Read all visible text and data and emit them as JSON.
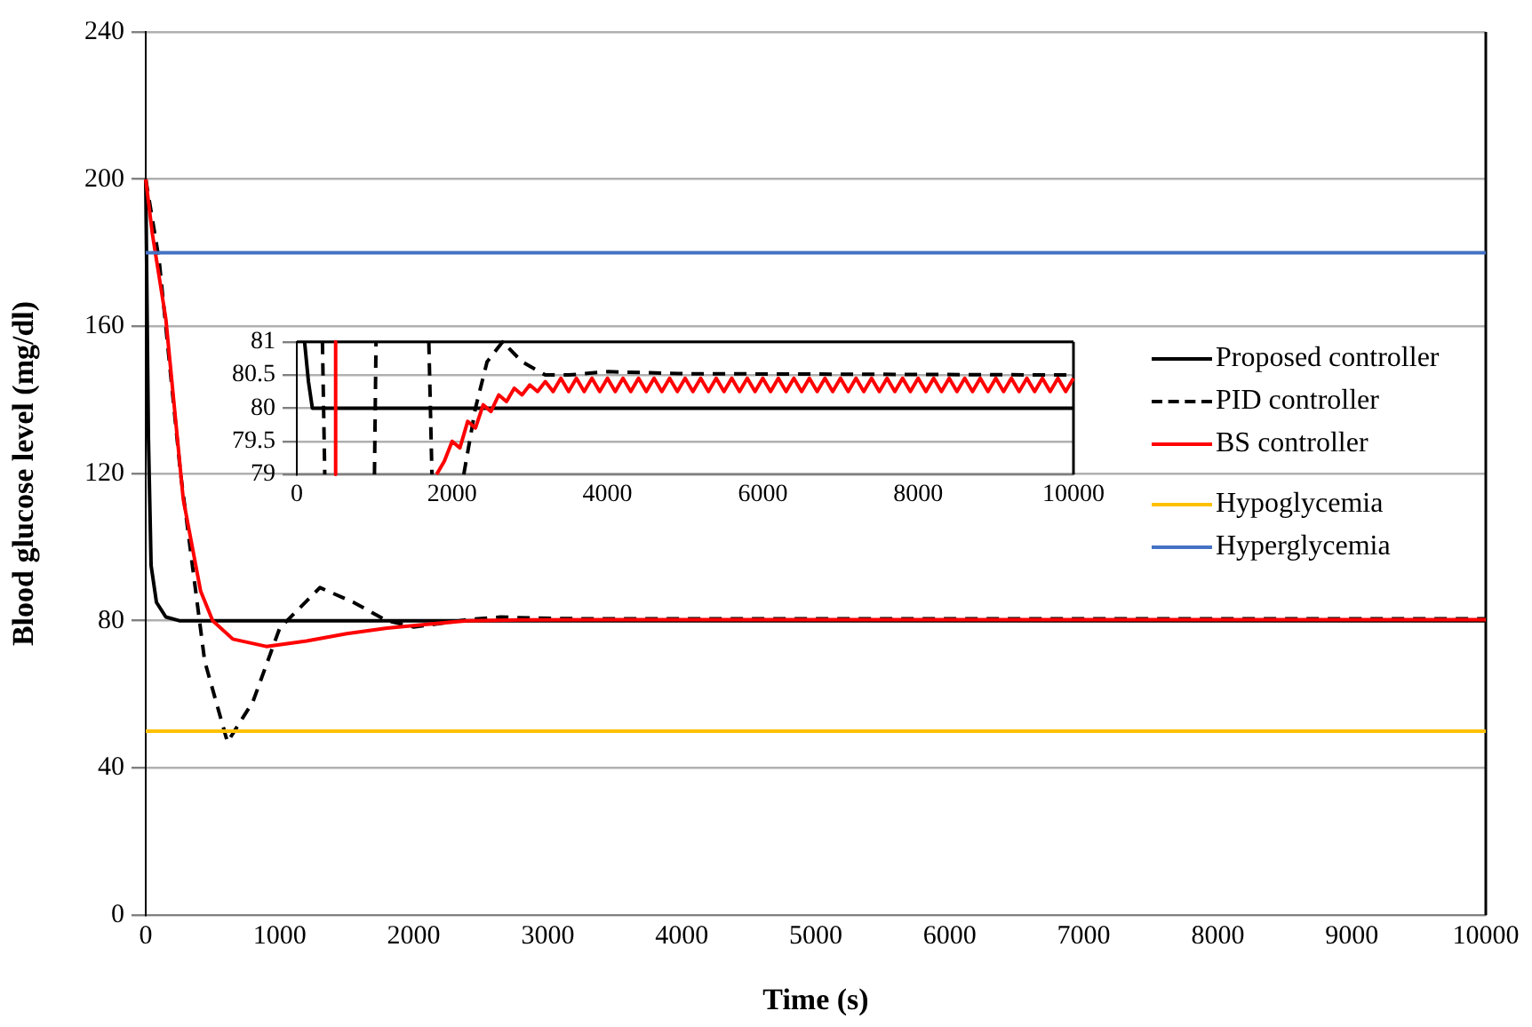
{
  "chart_data": [
    {
      "type": "line",
      "xlabel": "Time (s)",
      "ylabel": "Blood glucose level (mg/dl)",
      "xlim": [
        0,
        10000
      ],
      "xticks": [
        0,
        1000,
        2000,
        3000,
        4000,
        5000,
        6000,
        7000,
        8000,
        9000,
        10000
      ],
      "ylim": [
        0,
        240
      ],
      "yticks": [
        0,
        40,
        80,
        120,
        160,
        200,
        240
      ],
      "grid": "y",
      "legend": "right",
      "marker": "none",
      "series": [
        {
          "name": "Proposed controller",
          "color": "#000000",
          "x": [
            0,
            20,
            40,
            80,
            150,
            250,
            10000
          ],
          "values": [
            200,
            130,
            95,
            85,
            81,
            80,
            80
          ]
        },
        {
          "name": "PID controller",
          "color": "#000000",
          "line_style": "dashed",
          "x": [
            0,
            100,
            260,
            440,
            610,
            800,
            1000,
            1300,
            1550,
            1800,
            2000,
            2150,
            2400,
            2650,
            2900,
            3300,
            10000
          ],
          "values": [
            200,
            178,
            120,
            69,
            47,
            58,
            78,
            89,
            85,
            80,
            78.3,
            79,
            80.3,
            81,
            80.7,
            80.5,
            80.5
          ]
        },
        {
          "name": "BS controller",
          "color": "#ff0000",
          "x": [
            0,
            50,
            150,
            280,
            410,
            500,
            650,
            900,
            1200,
            1500,
            1800,
            2100,
            2400,
            2800,
            3500,
            10000
          ],
          "values": [
            200,
            185,
            162,
            113,
            88,
            80,
            75,
            73,
            74.5,
            76.5,
            78,
            79,
            80,
            80.2,
            80.3,
            80.3
          ]
        },
        {
          "name": "Hypoglycemia",
          "color": "#ffc000",
          "x": [
            0,
            10000
          ],
          "values": [
            50,
            50
          ]
        },
        {
          "name": "Hyperglycemia",
          "color": "#4472c4",
          "x": [
            0,
            10000
          ],
          "values": [
            180,
            180
          ]
        }
      ]
    },
    {
      "type": "line",
      "xlim": [
        0,
        10000
      ],
      "xticks": [
        0,
        2000,
        4000,
        6000,
        8000,
        10000
      ],
      "ylim": [
        79,
        81
      ],
      "yticks": [
        79,
        79.5,
        80,
        80.5,
        81
      ],
      "grid": "y",
      "marker": "none",
      "series": [
        {
          "color": "#000000",
          "x": [
            100,
            150,
            200,
            10000
          ],
          "values": [
            81,
            80.4,
            80,
            80
          ]
        },
        {
          "color": "#000000",
          "line_style": "dashed",
          "x": [
            330,
            360,
            365,
            1000,
            1020,
            1025,
            1700,
            1740,
            1745,
            2150,
            2300,
            2450,
            2650,
            2900,
            3200,
            3500,
            4000,
            5000,
            10000
          ],
          "values": [
            81,
            79,
            null,
            79,
            81,
            null,
            81,
            79,
            null,
            79,
            80,
            80.7,
            81,
            80.7,
            80.5,
            80.5,
            80.55,
            80.52,
            80.5
          ]
        },
        {
          "color": "#ff0000",
          "x": [
            500,
            500,
            510,
            1800,
            1900,
            2000,
            2100,
            2200,
            2300,
            2400,
            2500,
            2600,
            2700,
            2800,
            2900,
            3000,
            3100,
            3200,
            3300,
            3400,
            3500,
            3600,
            3700,
            3800,
            3900,
            4000,
            4100,
            4200,
            4300,
            4400,
            4500,
            4600,
            4700,
            4800,
            4900,
            5000,
            5100,
            5200,
            5300,
            5400,
            5500,
            5600,
            5700,
            5800,
            5900,
            6000,
            6100,
            6200,
            6300,
            6400,
            6500,
            6600,
            6700,
            6800,
            6900,
            7000,
            7100,
            7200,
            7300,
            7400,
            7500,
            7600,
            7700,
            7800,
            7900,
            8000,
            8100,
            8200,
            8300,
            8400,
            8500,
            8600,
            8700,
            8800,
            8900,
            9000,
            9100,
            9200,
            9300,
            9400,
            9500,
            9600,
            9700,
            9800,
            9900,
            10000
          ],
          "values": [
            81,
            79,
            null,
            79,
            79.2,
            79.5,
            79.4,
            79.8,
            79.7,
            80.05,
            79.95,
            80.2,
            80.1,
            80.3,
            80.2,
            80.35,
            80.25,
            80.4,
            80.25,
            80.45,
            80.25,
            80.45,
            80.25,
            80.45,
            80.25,
            80.45,
            80.25,
            80.45,
            80.25,
            80.45,
            80.25,
            80.45,
            80.25,
            80.45,
            80.25,
            80.45,
            80.25,
            80.45,
            80.25,
            80.45,
            80.25,
            80.45,
            80.25,
            80.45,
            80.25,
            80.45,
            80.25,
            80.45,
            80.25,
            80.45,
            80.25,
            80.45,
            80.25,
            80.45,
            80.25,
            80.45,
            80.25,
            80.45,
            80.25,
            80.45,
            80.25,
            80.45,
            80.25,
            80.45,
            80.25,
            80.45,
            80.25,
            80.45,
            80.25,
            80.45,
            80.25,
            80.45,
            80.25,
            80.45,
            80.25,
            80.45,
            80.25,
            80.45,
            80.25,
            80.45,
            80.25,
            80.45,
            80.25,
            80.45,
            80.25,
            80.45
          ]
        }
      ]
    }
  ]
}
